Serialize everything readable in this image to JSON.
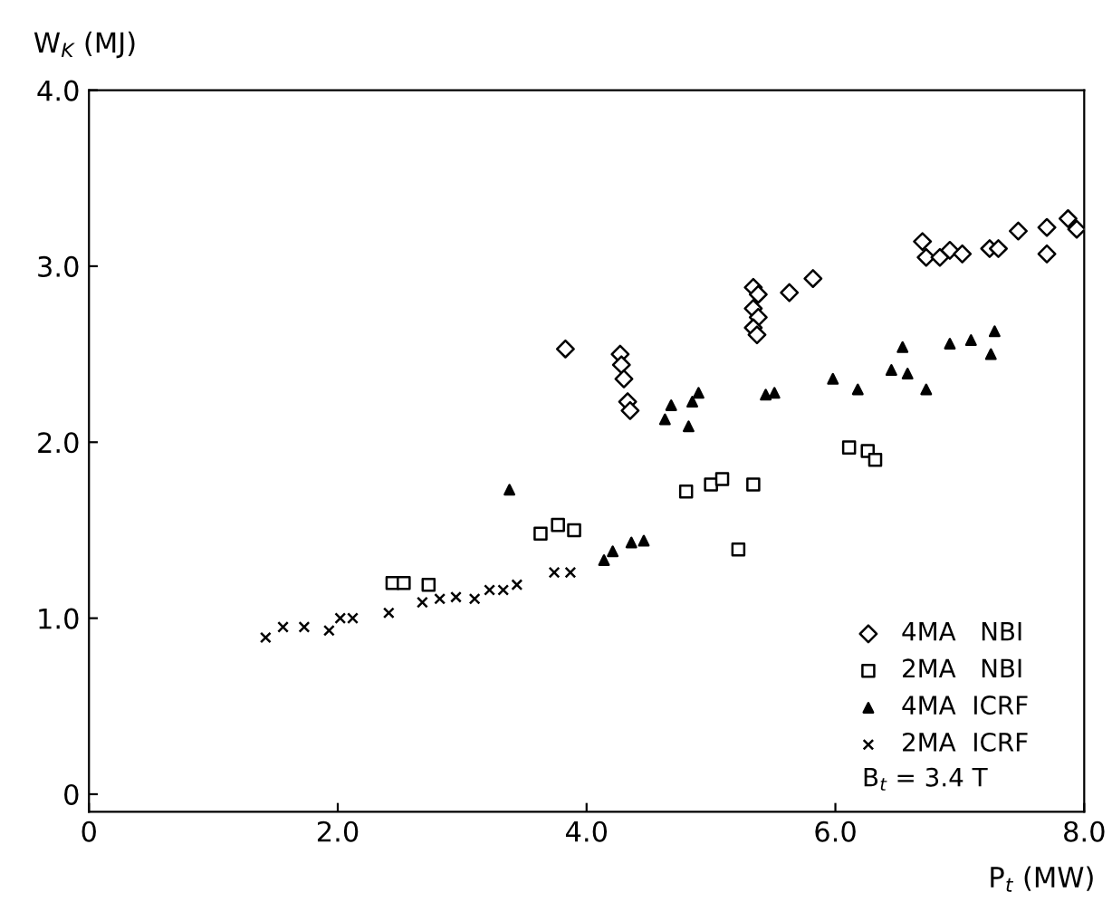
{
  "chart_data": {
    "type": "scatter",
    "xlabel": "P$_{t}$ (MW)",
    "ylabel": "W$_{K}$ (MJ)",
    "xlim": [
      0,
      8
    ],
    "ylim": [
      -0.1,
      4.0
    ],
    "xticks": [
      0,
      {
        "value": 2,
        "label": "2.0"
      },
      {
        "value": 4,
        "label": "4.0"
      },
      {
        "value": 6,
        "label": "6.0"
      },
      {
        "value": 8,
        "label": "8.0"
      }
    ],
    "yticks": [
      0,
      {
        "value": 1,
        "label": "1.0"
      },
      {
        "value": 2,
        "label": "2.0"
      },
      {
        "value": 3,
        "label": "3.0"
      },
      {
        "value": 4,
        "label": "4.0"
      }
    ],
    "grid": false,
    "legend": "bottom right",
    "annotations": [
      "B$_{t}$ = 3.4 T"
    ],
    "series": [
      {
        "name": "4MA   NBI",
        "color": "#000000",
        "marker": "diamond",
        "x": [
          3.83,
          4.27,
          4.28,
          4.3,
          4.33,
          4.35,
          5.34,
          5.38,
          5.34,
          5.38,
          5.34,
          5.37,
          5.63,
          5.82,
          6.7,
          6.73,
          6.84,
          6.92,
          7.02,
          7.24,
          7.31,
          7.47,
          7.7,
          7.7,
          7.87,
          7.94
        ],
        "values": [
          2.53,
          2.5,
          2.44,
          2.36,
          2.23,
          2.18,
          2.88,
          2.84,
          2.76,
          2.71,
          2.65,
          2.61,
          2.85,
          2.93,
          3.14,
          3.05,
          3.05,
          3.09,
          3.07,
          3.1,
          3.1,
          3.2,
          3.07,
          3.22,
          3.27,
          3.21
        ]
      },
      {
        "name": "2MA   NBI",
        "color": "#000000",
        "marker": "square",
        "x": [
          2.44,
          2.53,
          2.73,
          3.63,
          3.77,
          3.9,
          4.8,
          5.0,
          5.09,
          5.34,
          5.22,
          6.11,
          6.26,
          6.32
        ],
        "values": [
          1.2,
          1.2,
          1.19,
          1.48,
          1.53,
          1.5,
          1.72,
          1.76,
          1.79,
          1.76,
          1.39,
          1.97,
          1.95,
          1.9
        ]
      },
      {
        "name": "4MA  ICRF",
        "color": "#000000",
        "marker": "triangle",
        "x": [
          3.38,
          4.14,
          4.21,
          4.36,
          4.46,
          4.63,
          4.68,
          4.82,
          4.85,
          4.9,
          5.44,
          5.51,
          5.98,
          6.18,
          6.45,
          6.54,
          6.58,
          6.73,
          6.92,
          7.09,
          7.25,
          7.28
        ],
        "values": [
          1.73,
          1.33,
          1.38,
          1.43,
          1.44,
          2.13,
          2.21,
          2.09,
          2.23,
          2.28,
          2.27,
          2.28,
          2.36,
          2.3,
          2.41,
          2.54,
          2.39,
          2.3,
          2.56,
          2.58,
          2.5,
          2.63
        ]
      },
      {
        "name": "2MA  ICRF",
        "color": "#000000",
        "marker": "cross",
        "x": [
          1.42,
          1.56,
          1.73,
          1.93,
          2.02,
          2.12,
          2.41,
          2.68,
          2.82,
          2.95,
          3.1,
          3.22,
          3.33,
          3.44,
          3.74,
          3.87
        ],
        "values": [
          0.89,
          0.95,
          0.95,
          0.93,
          1.0,
          1.0,
          1.03,
          1.09,
          1.11,
          1.12,
          1.11,
          1.16,
          1.16,
          1.19,
          1.26,
          1.26
        ]
      }
    ]
  }
}
